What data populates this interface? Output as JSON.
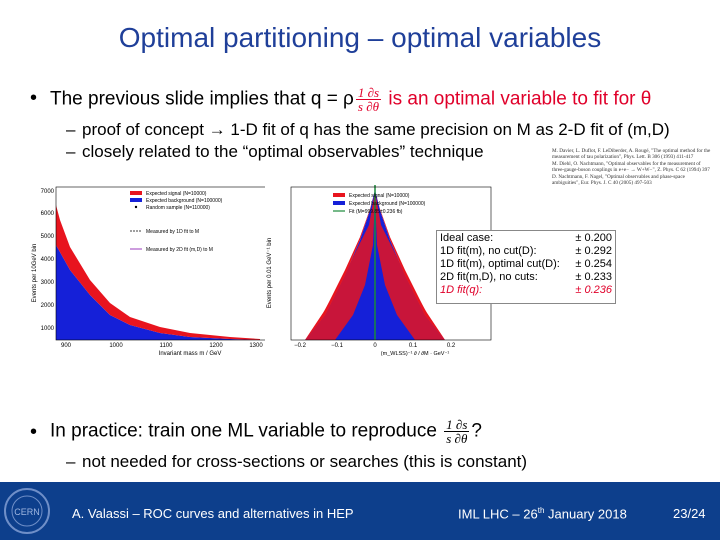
{
  "title": "Optimal partitioning – optimal variables",
  "bullet1": {
    "prefix": "The previous slide implies that q = ρ",
    "frac_num": "1 ∂s",
    "frac_den": "s ∂θ",
    "suffix": " is an optimal variable to fit for θ",
    "subs": [
      "proof of concept → 1-D fit of q has the same precision on M as 2-D fit of (m,D)",
      "closely related to the “optimal observables” technique"
    ]
  },
  "references": [
    "M. Davier, L. Duflot, F. LeDiberder, A. Rougé, \"The optimal method for the measurement of tau polarization\", Phys. Lett. B 306 (1993) 411-417",
    "M. Diehl, O. Nachtmann, \"Optimal observables for the measurement of three-gauge-boson couplings in e+e− → W+W−\", Z. Phys. C 62 (1994) 397",
    "D. Nachtmann, F. Nagel, \"Optimal observables and phase-space ambiguities\", Eur. Phys. J. C 40 (2005) 497-503"
  ],
  "plot_left": {
    "ylabel": "Events per 10GeV bin",
    "xlabel": "Invariant mass m / GeV",
    "xticks": [
      "900",
      "1000",
      "1100",
      "1200",
      "1300"
    ],
    "yticks": [
      "7000",
      "6000",
      "5000",
      "4000",
      "3000",
      "2000",
      "1000"
    ],
    "legend": [
      "Expected signal (N=10000)",
      "Expected background (N=100000)",
      "Random sample (N=110000)",
      "Measured by 1D fit to M",
      "Measured by 2D fit (m,D) to M"
    ],
    "colors": {
      "signal": "#e8141e",
      "background": "#1520d8",
      "fit1": "#404040",
      "fit2": "#9b3bbd"
    }
  },
  "plot_right": {
    "ylabel": "Events per 0.01 GeV⁻¹ bin",
    "xlabel": "(m_WLSS)⁻¹ ∂ / ∂M · GeV⁻¹",
    "xticks": [
      "−0.2",
      "−0.1",
      "0",
      "0.1",
      "0.2"
    ],
    "legend": [
      "Expected signal (N=10000)",
      "Expected background (N=100000)",
      "Fit (M=999.85±0.236 fb)"
    ],
    "colors": {
      "signal": "#e8141e",
      "background": "#1520d8",
      "fit": "#1a8a3a"
    }
  },
  "results": [
    {
      "label": "Ideal case:",
      "value": "± 0.200"
    },
    {
      "label": "1D fit(m), no cut(D):",
      "value": "± 0.292"
    },
    {
      "label": "1D fit(m), optimal cut(D):",
      "value": "± 0.254"
    },
    {
      "label": "2D fit(m,D), no cuts:",
      "value": "± 0.233"
    },
    {
      "label": "1D fit(q):",
      "value": "± 0.236"
    }
  ],
  "bullet2": {
    "prefix": "In practice: train one ML variable to reproduce ",
    "frac_num": "1 ∂s",
    "frac_den": "s ∂θ",
    "suffix": "?",
    "sub": "not needed for cross-sections or searches (this is constant)"
  },
  "footer": {
    "author": "A. Valassi – ROC curves and alternatives in HEP",
    "event_prefix": "IML LHC – 26",
    "event_sup": "th",
    "event_suffix": " January 2018",
    "page": "23/24",
    "logo_text": "CERN"
  },
  "colors": {
    "title": "#1f3f99",
    "accent_red": "#e0002a",
    "footer_bg": "#0d3f8c"
  }
}
